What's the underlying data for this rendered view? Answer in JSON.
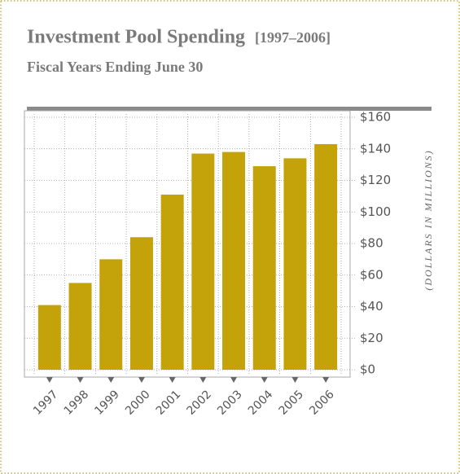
{
  "chart_data": {
    "type": "bar",
    "title": "Investment Pool Spending",
    "title_range": "[1997–2006]",
    "subtitle": "Fiscal Years Ending June 30",
    "y_axis_label": "(DOLLARS IN MILLIONS)",
    "categories": [
      "1997",
      "1998",
      "1999",
      "2000",
      "2001",
      "2002",
      "2003",
      "2004",
      "2005",
      "2006"
    ],
    "values": [
      41,
      55,
      70,
      84,
      111,
      137,
      138,
      129,
      134,
      143
    ],
    "color": "#c3a20a",
    "ylim": [
      0,
      160
    ],
    "yticks": [
      {
        "value": 0,
        "label": "$0"
      },
      {
        "value": 20,
        "label": "$20"
      },
      {
        "value": 40,
        "label": "$40"
      },
      {
        "value": 60,
        "label": "$60"
      },
      {
        "value": 80,
        "label": "$80"
      },
      {
        "value": 100,
        "label": "$100"
      },
      {
        "value": 120,
        "label": "$120"
      },
      {
        "value": 140,
        "label": "$140"
      },
      {
        "value": 160,
        "label": "$160"
      }
    ],
    "grid": true
  }
}
